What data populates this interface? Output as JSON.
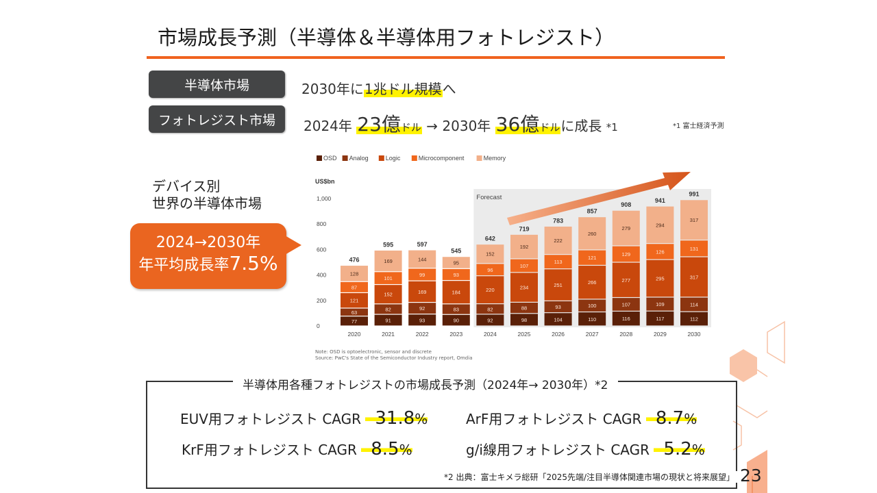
{
  "slide": {
    "title": "市場成長予測（半導体＆半導体用フォトレジスト）",
    "page_number": "23"
  },
  "summary": {
    "semiconductor": {
      "tag": "半導体市場",
      "prefix": "2030年に",
      "highlight": "1兆ドル規模",
      "suffix": "へ"
    },
    "photoresist": {
      "tag": "フォトレジスト市場",
      "year1": "2024年",
      "value1": "23億",
      "unit1": "ドル",
      "arrow": " → ",
      "year2": "2030年",
      "value2": "36億",
      "unit2": "ドル",
      "suffix": "に成長",
      "footnote_mark": "*1",
      "footnote": "*1 富士経済予測"
    }
  },
  "device_label": {
    "line1": "デバイス別",
    "line2": "世界の半導体市場"
  },
  "callout": {
    "line1": "2024→2030年",
    "line2_prefix": "年平均成長率",
    "line2_value": "7.5%"
  },
  "chart_data": {
    "type": "bar",
    "stacked": true,
    "title": "",
    "ylabel": "US$bn",
    "xlabel": "",
    "ylim": [
      0,
      1000
    ],
    "yticks": [
      "0",
      "200",
      "400",
      "600",
      "800",
      "1,000"
    ],
    "ytick_values": [
      0,
      200,
      400,
      600,
      800,
      1000
    ],
    "categories": [
      "2020",
      "2021",
      "2022",
      "2023",
      "2024",
      "2025",
      "2026",
      "2027",
      "2028",
      "2029",
      "2030"
    ],
    "forecast_label": "Forecast",
    "forecast_start": "2024",
    "series": [
      {
        "name": "OSD",
        "color": "#5a2008",
        "values": [
          77,
          91,
          93,
          90,
          92,
          98,
          104,
          110,
          116,
          117,
          112
        ]
      },
      {
        "name": "Analog",
        "color": "#8c3510",
        "values": [
          63,
          82,
          92,
          83,
          82,
          88,
          93,
          100,
          107,
          109,
          114
        ]
      },
      {
        "name": "Logic",
        "color": "#c9480c",
        "values": [
          121,
          152,
          169,
          184,
          220,
          234,
          251,
          266,
          277,
          295,
          317
        ]
      },
      {
        "name": "Microcomponent",
        "color": "#f0671c",
        "values": [
          87,
          101,
          99,
          93,
          96,
          107,
          113,
          121,
          129,
          126,
          131
        ]
      },
      {
        "name": "Memory",
        "color": "#f2b08a",
        "values": [
          128,
          169,
          144,
          95,
          152,
          192,
          222,
          260,
          279,
          294,
          317
        ]
      }
    ],
    "totals": [
      476,
      595,
      597,
      545,
      642,
      719,
      783,
      857,
      908,
      941,
      991
    ],
    "legend_position": "top-left",
    "grid": false,
    "note": "Note: OSD is optoelectronic, sensor and discrete",
    "source": "Source: PwC's State of the Semiconductor Industry report, Omdia"
  },
  "cagr": {
    "title": "半導体用各種フォトレジストの市場成長予測（2024年→ 2030年）*2",
    "items": [
      {
        "label": "EUV用フォトレジスト CAGR",
        "value": "31.8",
        "unit": "%"
      },
      {
        "label": "ArF用フォトレジスト  CAGR",
        "value": "8.7",
        "unit": "%"
      },
      {
        "label": "KrF用フォトレジスト  CAGR",
        "value": "8.5",
        "unit": "%"
      },
      {
        "label": "g/i線用フォトレジスト CAGR",
        "value": "5.2",
        "unit": "%"
      }
    ],
    "source": "*2 出典：富士キメラ総研「2025先端/注目半導体関連市場の現状と将来展望」"
  }
}
